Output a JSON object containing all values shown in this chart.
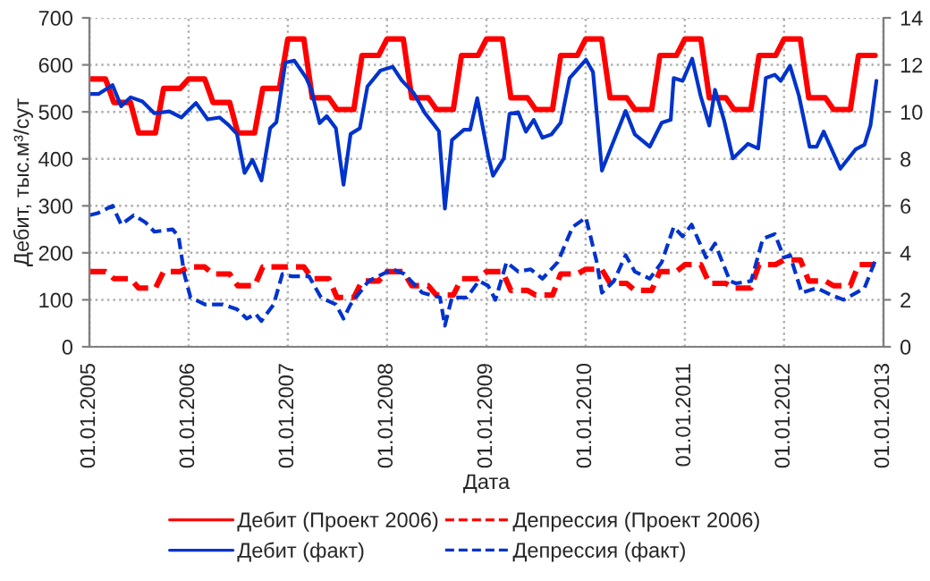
{
  "chart_data": {
    "type": "line",
    "xlabel": "Дата",
    "ylabel": "Дебит, тыс.м³/сут",
    "xlim": [
      "2005-01-01",
      "2013-01-01"
    ],
    "xticks": [
      {
        "value": "2005-01-01",
        "label": "01.01.2005"
      },
      {
        "value": "2006-01-01",
        "label": "01.01.2006"
      },
      {
        "value": "2007-01-01",
        "label": "01.01.2007"
      },
      {
        "value": "2008-01-01",
        "label": "01.01.2008"
      },
      {
        "value": "2009-01-01",
        "label": "01.01.2009"
      },
      {
        "value": "2010-01-01",
        "label": "01.01.2010"
      },
      {
        "value": "2011-01-01",
        "label": "01.01.2011"
      },
      {
        "value": "2012-01-01",
        "label": "01.01.2012"
      },
      {
        "value": "2013-01-01",
        "label": "01.01.2013"
      }
    ],
    "ylim": [
      0,
      700
    ],
    "yticks": [
      0,
      100,
      200,
      300,
      400,
      500,
      600,
      700
    ],
    "y2lim": [
      0,
      14
    ],
    "y2ticks": [
      0,
      2,
      4,
      6,
      8,
      10,
      12,
      14
    ],
    "grid": true,
    "legend": "bottom",
    "marker": "none",
    "series": [
      {
        "name": "Дебит (Проект 2006)",
        "color": "#ff0000",
        "line_style": "solid",
        "x": [
          "2005-01",
          "2005-02",
          "2005-03",
          "2005-04",
          "2005-05",
          "2005-06",
          "2005-07",
          "2005-08",
          "2005-09",
          "2005-10",
          "2005-11",
          "2005-12",
          "2006-01",
          "2006-02",
          "2006-03",
          "2006-04",
          "2006-05",
          "2006-06",
          "2006-07",
          "2006-08",
          "2006-09",
          "2006-10",
          "2006-11",
          "2006-12",
          "2007-01",
          "2007-02",
          "2007-03",
          "2007-04",
          "2007-05",
          "2007-06",
          "2007-07",
          "2007-08",
          "2007-09",
          "2007-10",
          "2007-11",
          "2007-12",
          "2008-01",
          "2008-02",
          "2008-03",
          "2008-04",
          "2008-05",
          "2008-06",
          "2008-07",
          "2008-08",
          "2008-09",
          "2008-10",
          "2008-11",
          "2008-12",
          "2009-01",
          "2009-02",
          "2009-03",
          "2009-04",
          "2009-05",
          "2009-06",
          "2009-07",
          "2009-08",
          "2009-09",
          "2009-10",
          "2009-11",
          "2009-12",
          "2010-01",
          "2010-02",
          "2010-03",
          "2010-04",
          "2010-05",
          "2010-06",
          "2010-07",
          "2010-08",
          "2010-09",
          "2010-10",
          "2010-11",
          "2010-12",
          "2011-01",
          "2011-02",
          "2011-03",
          "2011-04",
          "2011-05",
          "2011-06",
          "2011-07",
          "2011-08",
          "2011-09",
          "2011-10",
          "2011-11",
          "2011-12",
          "2012-01",
          "2012-02",
          "2012-03",
          "2012-04",
          "2012-05",
          "2012-06",
          "2012-07",
          "2012-08",
          "2012-09",
          "2012-10",
          "2012-11",
          "2012-12"
        ],
        "values": [
          570,
          570,
          570,
          520,
          520,
          520,
          455,
          455,
          455,
          550,
          550,
          550,
          570,
          570,
          570,
          520,
          520,
          520,
          455,
          455,
          455,
          550,
          550,
          550,
          655,
          655,
          655,
          530,
          530,
          530,
          505,
          505,
          505,
          620,
          620,
          620,
          655,
          655,
          655,
          530,
          530,
          530,
          505,
          505,
          505,
          620,
          620,
          620,
          655,
          655,
          655,
          530,
          530,
          530,
          505,
          505,
          505,
          620,
          620,
          620,
          655,
          655,
          655,
          530,
          530,
          530,
          505,
          505,
          505,
          620,
          620,
          620,
          655,
          655,
          655,
          530,
          530,
          530,
          505,
          505,
          505,
          620,
          620,
          620,
          655,
          655,
          655,
          530,
          530,
          530,
          505,
          505,
          505,
          620,
          620,
          620
        ]
      },
      {
        "name": "Дебит (факт)",
        "color": "#0033cc",
        "line_style": "solid",
        "x": [
          "2005-01-01",
          "2005-02-03",
          "2005-03-27",
          "2005-04-28",
          "2005-06-02",
          "2005-07-15",
          "2005-08-28",
          "2005-10-22",
          "2005-12-05",
          "2006-01-28",
          "2006-03-12",
          "2006-04-25",
          "2006-05-28",
          "2006-06-28",
          "2006-07-26",
          "2006-08-24",
          "2006-09-26",
          "2006-10-28",
          "2006-11-20",
          "2006-12-23",
          "2007-01-25",
          "2007-03-09",
          "2007-03-28",
          "2007-04-28",
          "2007-05-24",
          "2007-06-27",
          "2007-07-25",
          "2007-08-20",
          "2007-09-23",
          "2007-10-21",
          "2007-12-08",
          "2008-01-22",
          "2008-02-24",
          "2008-04-07",
          "2008-05-20",
          "2008-06-23",
          "2008-07-10",
          "2008-08-01",
          "2008-08-27",
          "2008-10-10",
          "2008-11-02",
          "2008-11-28",
          "2009-01-07",
          "2009-01-25",
          "2009-03-06",
          "2009-03-27",
          "2009-04-28",
          "2009-05-26",
          "2009-06-24",
          "2009-07-26",
          "2009-08-28",
          "2009-10-01",
          "2009-11-03",
          "2010-01-02",
          "2010-01-28",
          "2010-03-02",
          "2010-05-28",
          "2010-07-01",
          "2010-08-25",
          "2010-10-08",
          "2010-11-10",
          "2010-11-21",
          "2010-12-24",
          "2011-01-28",
          "2011-02-28",
          "2011-04-01",
          "2011-04-22",
          "2011-05-25",
          "2011-06-27",
          "2011-08-21",
          "2011-09-28",
          "2011-10-26",
          "2011-11-28",
          "2011-12-20",
          "2012-01-23",
          "2012-02-25",
          "2012-04-04",
          "2012-04-30",
          "2012-05-26",
          "2012-07-26",
          "2012-09-20",
          "2012-10-23",
          "2012-11-14",
          "2012-12-06"
        ],
        "values": [
          538,
          538,
          557,
          512,
          531,
          522,
          497,
          501,
          488,
          519,
          484,
          488,
          472,
          453,
          370,
          398,
          354,
          465,
          478,
          605,
          609,
          573,
          548,
          476,
          491,
          465,
          345,
          453,
          465,
          554,
          588,
          596,
          567,
          541,
          497,
          472,
          459,
          294,
          440,
          462,
          462,
          529,
          408,
          364,
          401,
          496,
          499,
          458,
          483,
          445,
          452,
          477,
          572,
          611,
          585,
          375,
          502,
          452,
          426,
          477,
          483,
          572,
          566,
          613,
          534,
          471,
          547,
          483,
          401,
          432,
          422,
          572,
          579,
          566,
          598,
          534,
          426,
          426,
          458,
          379,
          420,
          430,
          471,
          566
        ]
      },
      {
        "name": "Депрессия (Проект 2006)",
        "color": "#ff0000",
        "line_style": "dashed",
        "axis": "y2",
        "x": [
          "2005-01",
          "2005-02",
          "2005-03",
          "2005-04",
          "2005-05",
          "2005-06",
          "2005-07",
          "2005-08",
          "2005-09",
          "2005-10",
          "2005-11",
          "2005-12",
          "2006-01",
          "2006-02",
          "2006-03",
          "2006-04",
          "2006-05",
          "2006-06",
          "2006-07",
          "2006-08",
          "2006-09",
          "2006-10",
          "2006-11",
          "2006-12",
          "2007-01",
          "2007-02",
          "2007-03",
          "2007-04",
          "2007-05",
          "2007-06",
          "2007-07",
          "2007-08",
          "2007-09",
          "2007-10",
          "2007-11",
          "2007-12",
          "2008-01",
          "2008-02",
          "2008-03",
          "2008-04",
          "2008-05",
          "2008-06",
          "2008-07",
          "2008-08",
          "2008-09",
          "2008-10",
          "2008-11",
          "2008-12",
          "2009-01",
          "2009-02",
          "2009-03",
          "2009-04",
          "2009-05",
          "2009-06",
          "2009-07",
          "2009-08",
          "2009-09",
          "2009-10",
          "2009-11",
          "2009-12",
          "2010-01",
          "2010-02",
          "2010-03",
          "2010-04",
          "2010-05",
          "2010-06",
          "2010-07",
          "2010-08",
          "2010-09",
          "2010-10",
          "2010-11",
          "2010-12",
          "2011-01",
          "2011-02",
          "2011-03",
          "2011-04",
          "2011-05",
          "2011-06",
          "2011-07",
          "2011-08",
          "2011-09",
          "2011-10",
          "2011-11",
          "2011-12",
          "2012-01",
          "2012-02",
          "2012-03",
          "2012-04",
          "2012-05",
          "2012-06",
          "2012-07",
          "2012-08",
          "2012-09",
          "2012-10",
          "2012-11",
          "2012-12"
        ],
        "values": [
          3.2,
          3.2,
          3.2,
          2.9,
          2.9,
          2.9,
          2.5,
          2.5,
          2.5,
          3.2,
          3.2,
          3.2,
          3.4,
          3.4,
          3.4,
          3.1,
          3.1,
          3.1,
          2.6,
          2.6,
          2.6,
          3.4,
          3.4,
          3.4,
          3.4,
          3.4,
          3.4,
          2.9,
          2.9,
          2.9,
          2.1,
          2.1,
          2.1,
          2.8,
          2.8,
          2.8,
          3.2,
          3.2,
          3.2,
          2.6,
          2.6,
          2.6,
          2.2,
          2.2,
          2.2,
          2.9,
          2.9,
          2.9,
          3.2,
          3.2,
          3.2,
          2.4,
          2.4,
          2.4,
          2.2,
          2.2,
          2.2,
          3.1,
          3.1,
          3.1,
          3.3,
          3.3,
          3.3,
          2.7,
          2.7,
          2.7,
          2.4,
          2.4,
          2.4,
          3.2,
          3.2,
          3.2,
          3.5,
          3.5,
          3.5,
          2.7,
          2.7,
          2.7,
          2.5,
          2.5,
          2.5,
          3.5,
          3.5,
          3.5,
          3.7,
          3.7,
          3.7,
          2.8,
          2.8,
          2.8,
          2.6,
          2.6,
          2.6,
          3.5,
          3.5,
          3.5
        ]
      },
      {
        "name": "Депрессия (факт)",
        "color": "#0033cc",
        "line_style": "dashed",
        "axis": "y2",
        "x": [
          "2005-01-01",
          "2005-02-03",
          "2005-03-27",
          "2005-04-28",
          "2005-06-13",
          "2005-07-26",
          "2005-08-28",
          "2005-11-03",
          "2005-11-25",
          "2005-12-16",
          "2006-01-08",
          "2006-03-02",
          "2006-05-07",
          "2006-06-28",
          "2006-08-03",
          "2006-09-05",
          "2006-09-26",
          "2006-11-10",
          "2006-12-12",
          "2007-01-15",
          "2007-03-20",
          "2007-05-03",
          "2007-06-27",
          "2007-07-25",
          "2007-08-20",
          "2007-10-25",
          "2008-01-22",
          "2008-03-05",
          "2008-05-10",
          "2008-07-14",
          "2008-08-01",
          "2008-08-27",
          "2008-10-21",
          "2008-12-04",
          "2009-01-07",
          "2009-02-03",
          "2009-03-16",
          "2009-04-28",
          "2009-06-13",
          "2009-07-26",
          "2009-09-20",
          "2009-11-14",
          "2010-01-02",
          "2010-02-11",
          "2010-03-02",
          "2010-04-15",
          "2010-05-28",
          "2010-07-01",
          "2010-08-25",
          "2010-10-08",
          "2010-11-21",
          "2010-12-24",
          "2011-01-26",
          "2011-03-20",
          "2011-04-22",
          "2011-06-16",
          "2011-07-08",
          "2011-09-02",
          "2011-10-15",
          "2011-11-28",
          "2012-01-01",
          "2012-01-23",
          "2012-03-06",
          "2012-04-30",
          "2012-06-24",
          "2012-08-07",
          "2012-10-23",
          "2012-12-06"
        ],
        "values": [
          5.6,
          5.7,
          6.0,
          5.2,
          5.6,
          5.3,
          4.9,
          5.0,
          4.7,
          3.1,
          2.1,
          1.8,
          1.8,
          1.6,
          1.2,
          1.4,
          1.1,
          1.8,
          3.1,
          3.0,
          3.0,
          2.1,
          1.8,
          1.2,
          1.8,
          2.8,
          3.3,
          3.1,
          2.3,
          2.1,
          0.9,
          2.1,
          2.1,
          2.8,
          2.6,
          2.0,
          3.6,
          3.2,
          3.3,
          2.9,
          3.6,
          5.1,
          5.5,
          3.6,
          2.3,
          2.8,
          3.9,
          3.2,
          2.9,
          3.6,
          5.1,
          4.7,
          5.2,
          3.8,
          4.4,
          2.8,
          2.7,
          2.8,
          4.6,
          4.8,
          3.8,
          3.9,
          2.3,
          2.5,
          2.2,
          2.0,
          2.5,
          3.8
        ]
      }
    ]
  }
}
